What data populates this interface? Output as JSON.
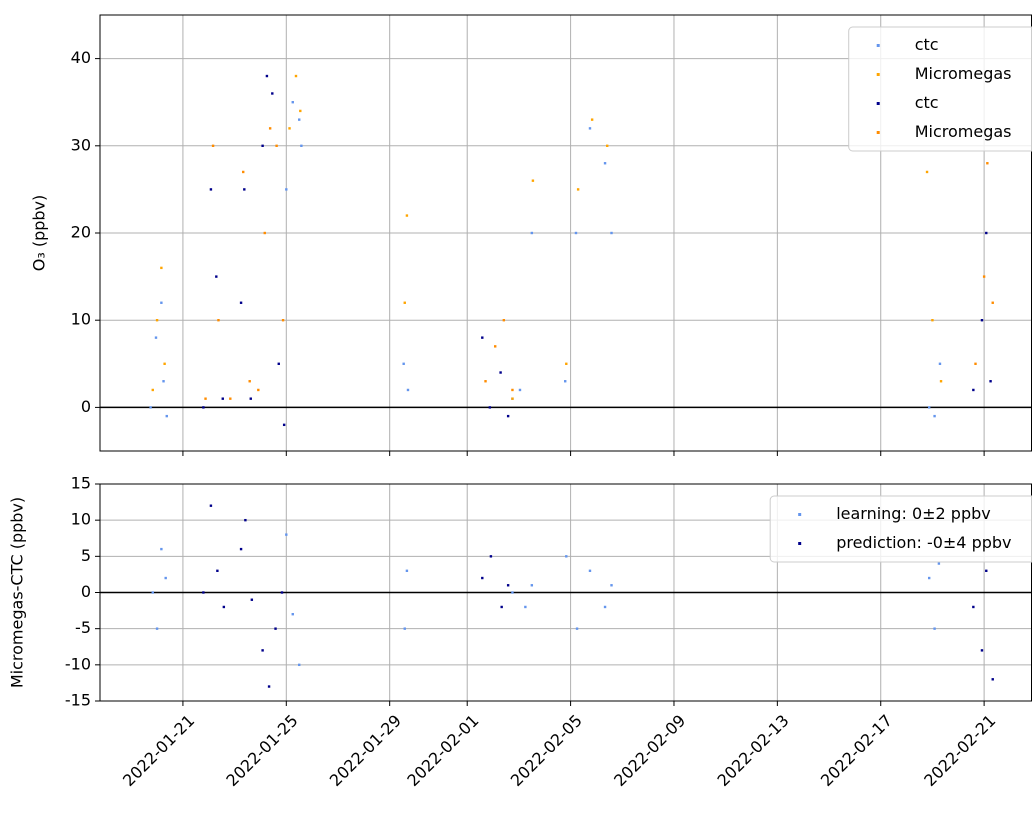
{
  "chart_data": [
    {
      "type": "scatter",
      "ylabel": "O₃ (ppbv)",
      "xlim": [
        "2022-01-17T19:00",
        "2022-02-22T20:00"
      ],
      "xticks": [
        "2022-01-21",
        "2022-01-25",
        "2022-01-29",
        "2022-02-01",
        "2022-02-05",
        "2022-02-09",
        "2022-02-13",
        "2022-02-17",
        "2022-02-21"
      ],
      "ylim": [
        -5,
        45
      ],
      "yticks": [
        0,
        10,
        20,
        30,
        40
      ],
      "grid": true,
      "hline": 0,
      "legend": "upper right",
      "series": [
        {
          "name": "ctc",
          "color": "#6495ed",
          "x": [
            "2022-01-19T18:00",
            "2022-01-19T23:00",
            "2022-01-20T04:00",
            "2022-01-20T06:00",
            "2022-01-20T09:00",
            "2022-01-25T00:00",
            "2022-01-25T06:00",
            "2022-01-25T12:00",
            "2022-01-25T14:00",
            "2022-01-29T13:00",
            "2022-01-29T17:00",
            "2022-02-02T18:00",
            "2022-02-03T01:00",
            "2022-02-03T12:00",
            "2022-02-04T19:00",
            "2022-02-05T05:00",
            "2022-02-05T18:00",
            "2022-02-06T08:00",
            "2022-02-06T14:00",
            "2022-02-18T21:00",
            "2022-02-19T02:00",
            "2022-02-19T07:00"
          ],
          "values": [
            0,
            8,
            12,
            3,
            -1,
            25,
            35,
            33,
            30,
            5,
            2,
            1,
            2,
            20,
            3,
            20,
            32,
            28,
            20,
            0,
            -1,
            5
          ]
        },
        {
          "name": "Micromegas",
          "color": "#ffa500",
          "x": [
            "2022-01-19T20:00",
            "2022-01-20T00:00",
            "2022-01-20T04:00",
            "2022-01-20T07:00",
            "2022-01-25T03:00",
            "2022-01-25T09:00",
            "2022-01-25T13:00",
            "2022-01-29T14:00",
            "2022-01-29T16:00",
            "2022-02-02T18:00",
            "2022-02-03T13:00",
            "2022-02-04T20:00",
            "2022-02-05T07:00",
            "2022-02-05T20:00",
            "2022-02-06T10:00",
            "2022-02-18T19:00",
            "2022-02-19T00:00",
            "2022-02-19T08:00"
          ],
          "values": [
            2,
            10,
            16,
            5,
            32,
            38,
            34,
            12,
            22,
            1,
            26,
            5,
            25,
            33,
            30,
            27,
            10,
            3
          ]
        },
        {
          "name": "ctc",
          "color": "#00008b",
          "x": [
            "2022-01-21T19:00",
            "2022-01-22T02:00",
            "2022-01-22T07:00",
            "2022-01-22T13:00",
            "2022-01-23T06:00",
            "2022-01-23T09:00",
            "2022-01-23T15:00",
            "2022-01-24T02:00",
            "2022-01-24T06:00",
            "2022-01-24T11:00",
            "2022-01-24T17:00",
            "2022-01-24T22:00",
            "2022-02-01T14:00",
            "2022-02-01T21:00",
            "2022-02-02T07:00",
            "2022-02-02T14:00",
            "2022-02-20T14:00",
            "2022-02-20T22:00",
            "2022-02-21T02:00",
            "2022-02-21T06:00"
          ],
          "values": [
            0,
            25,
            15,
            1,
            12,
            25,
            1,
            30,
            38,
            36,
            5,
            -2,
            8,
            0,
            4,
            -1,
            2,
            10,
            20,
            3
          ]
        },
        {
          "name": "Micromegas",
          "color": "#ff8c00",
          "x": [
            "2022-01-21T21:00",
            "2022-01-22T04:00",
            "2022-01-22T09:00",
            "2022-01-22T20:00",
            "2022-01-23T08:00",
            "2022-01-23T14:00",
            "2022-01-23T22:00",
            "2022-01-24T04:00",
            "2022-01-24T09:00",
            "2022-01-24T15:00",
            "2022-01-24T21:00",
            "2022-02-01T17:00",
            "2022-02-02T02:00",
            "2022-02-02T10:00",
            "2022-02-02T18:00",
            "2022-02-20T16:00",
            "2022-02-21T00:00",
            "2022-02-21T03:00",
            "2022-02-21T08:00"
          ],
          "values": [
            1,
            30,
            10,
            1,
            27,
            3,
            2,
            20,
            32,
            30,
            10,
            3,
            7,
            10,
            2,
            5,
            15,
            28,
            12
          ]
        }
      ]
    },
    {
      "type": "scatter",
      "ylabel": "Micromegas-CTC (ppbv)",
      "xlim": [
        "2022-01-17T19:00",
        "2022-02-22T20:00"
      ],
      "xticks": [
        "2022-01-21",
        "2022-01-25",
        "2022-01-29",
        "2022-02-01",
        "2022-02-05",
        "2022-02-09",
        "2022-02-13",
        "2022-02-17",
        "2022-02-21"
      ],
      "ylim": [
        -15,
        15
      ],
      "yticks": [
        -15,
        -10,
        -5,
        0,
        5,
        10,
        15
      ],
      "grid": true,
      "hline": 0,
      "legend": "upper right",
      "series": [
        {
          "name": "learning: 0±2 ppbv",
          "color": "#6495ed",
          "x": [
            "2022-01-19T20:00",
            "2022-01-20T00:00",
            "2022-01-20T04:00",
            "2022-01-20T08:00",
            "2022-01-25T00:00",
            "2022-01-25T06:00",
            "2022-01-25T12:00",
            "2022-01-29T14:00",
            "2022-01-29T16:00",
            "2022-02-02T18:00",
            "2022-02-03T06:00",
            "2022-02-03T12:00",
            "2022-02-04T20:00",
            "2022-02-05T06:00",
            "2022-02-05T18:00",
            "2022-02-06T08:00",
            "2022-02-06T14:00",
            "2022-02-18T21:00",
            "2022-02-19T02:00",
            "2022-02-19T06:00"
          ],
          "values": [
            0,
            -5,
            6,
            2,
            8,
            -3,
            -10,
            -5,
            3,
            0,
            -2,
            1,
            5,
            -5,
            3,
            -2,
            1,
            2,
            -5,
            4
          ]
        },
        {
          "name": "prediction: -0±4 ppbv",
          "color": "#00008b",
          "x": [
            "2022-01-21T19:00",
            "2022-01-22T02:00",
            "2022-01-22T08:00",
            "2022-01-22T14:00",
            "2022-01-23T06:00",
            "2022-01-23T10:00",
            "2022-01-23T16:00",
            "2022-01-24T02:00",
            "2022-01-24T08:00",
            "2022-01-24T14:00",
            "2022-01-24T20:00",
            "2022-02-01T14:00",
            "2022-02-01T22:00",
            "2022-02-02T08:00",
            "2022-02-02T14:00",
            "2022-02-20T14:00",
            "2022-02-20T22:00",
            "2022-02-21T02:00",
            "2022-02-21T08:00"
          ],
          "values": [
            0,
            12,
            3,
            -2,
            6,
            10,
            -1,
            -8,
            -13,
            -5,
            0,
            2,
            5,
            -2,
            1,
            -2,
            -8,
            3,
            -12
          ]
        }
      ]
    }
  ]
}
